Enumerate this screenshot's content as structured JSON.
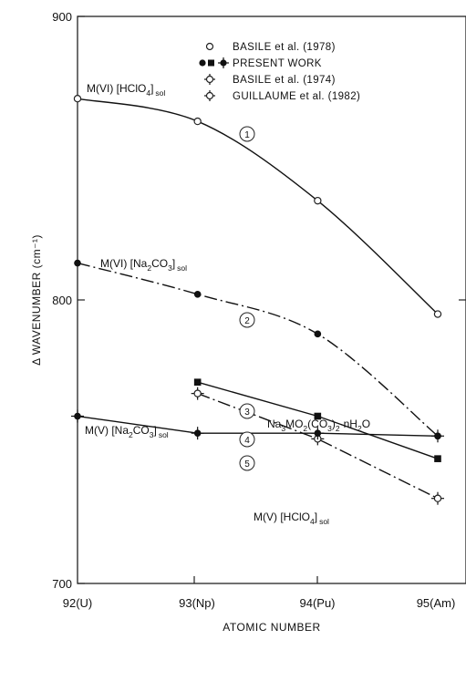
{
  "chart_data": {
    "type": "line",
    "categories": [
      "92(U)",
      "93(Np)",
      "94(Pu)",
      "95(Am)"
    ],
    "xlabel": "ATOMIC NUMBER",
    "ylabel": "Δ WAVENUMBER (cm⁻¹)",
    "ylim": [
      700,
      900
    ],
    "yticks": [
      "700",
      "800",
      "900"
    ],
    "grid": false,
    "legend_position": "top-right",
    "legend": [
      {
        "label": "BASILE et al. (1978)",
        "marker": "open-circle"
      },
      {
        "label": "PRESENT WORK",
        "marker": "filled-circle, filled-square, filled-circle with cross"
      },
      {
        "label": "BASILE et al. (1974)",
        "marker": "open-circle with cross"
      },
      {
        "label": "GUILLAUME et al. (1982)",
        "marker": "open-circle with cross"
      }
    ],
    "series": [
      {
        "curve_number": "1",
        "label_main": "M(VI)  [HClO",
        "label_sub1": "4",
        "label_close": "]",
        "label_sub2": "sol",
        "x": [
          92,
          93,
          94,
          95
        ],
        "y": [
          871,
          863,
          835,
          795
        ],
        "marker": "open-circle",
        "line_style": "solid",
        "smooth": true
      },
      {
        "curve_number": "2",
        "label_main": "M(VI)  [Na",
        "label_sub1": "2",
        "label_mid": "CO",
        "label_sub1b": "3",
        "label_close": "]",
        "label_sub2": "sol",
        "x": [
          92,
          93,
          94,
          95
        ],
        "y": [
          813,
          802,
          788,
          752
        ],
        "marker": "filled-circle",
        "line_style": "dash-dot",
        "smooth": true
      },
      {
        "curve_number": "3",
        "label_formula": "Na3MO2(CO3)2·nH2O",
        "label_a": "Na",
        "label_a_sub": "3",
        "label_b": "MO",
        "label_b_sub": "2",
        "label_c": "(CO",
        "label_c_sub": "3",
        "label_d": ")",
        "label_d_sub": "2",
        "label_e": "·nH",
        "label_e_sub": "2",
        "label_f": "O",
        "x": [
          93,
          94,
          95
        ],
        "y": [
          771,
          759,
          744
        ],
        "marker": "filled-square",
        "line_style": "solid",
        "smooth": false
      },
      {
        "curve_number": "4",
        "label_main": "M(V) [HClO",
        "label_sub1": "4",
        "label_close": "]",
        "label_sub2": "sol",
        "x": [
          93,
          94,
          95
        ],
        "y": [
          767,
          751,
          730
        ],
        "marker": "open-circle with cross",
        "line_style": "dash-dot",
        "smooth": false
      },
      {
        "curve_number": "5",
        "label_main": "M(V) [Na",
        "label_sub1": "2",
        "label_mid": "CO",
        "label_sub1b": "3",
        "label_close": "]",
        "label_sub2": "sol",
        "x": [
          92,
          93,
          94,
          95
        ],
        "y": [
          759,
          753,
          753,
          752
        ],
        "marker": "filled-circle with cross",
        "line_style": "solid",
        "smooth": false
      }
    ]
  }
}
